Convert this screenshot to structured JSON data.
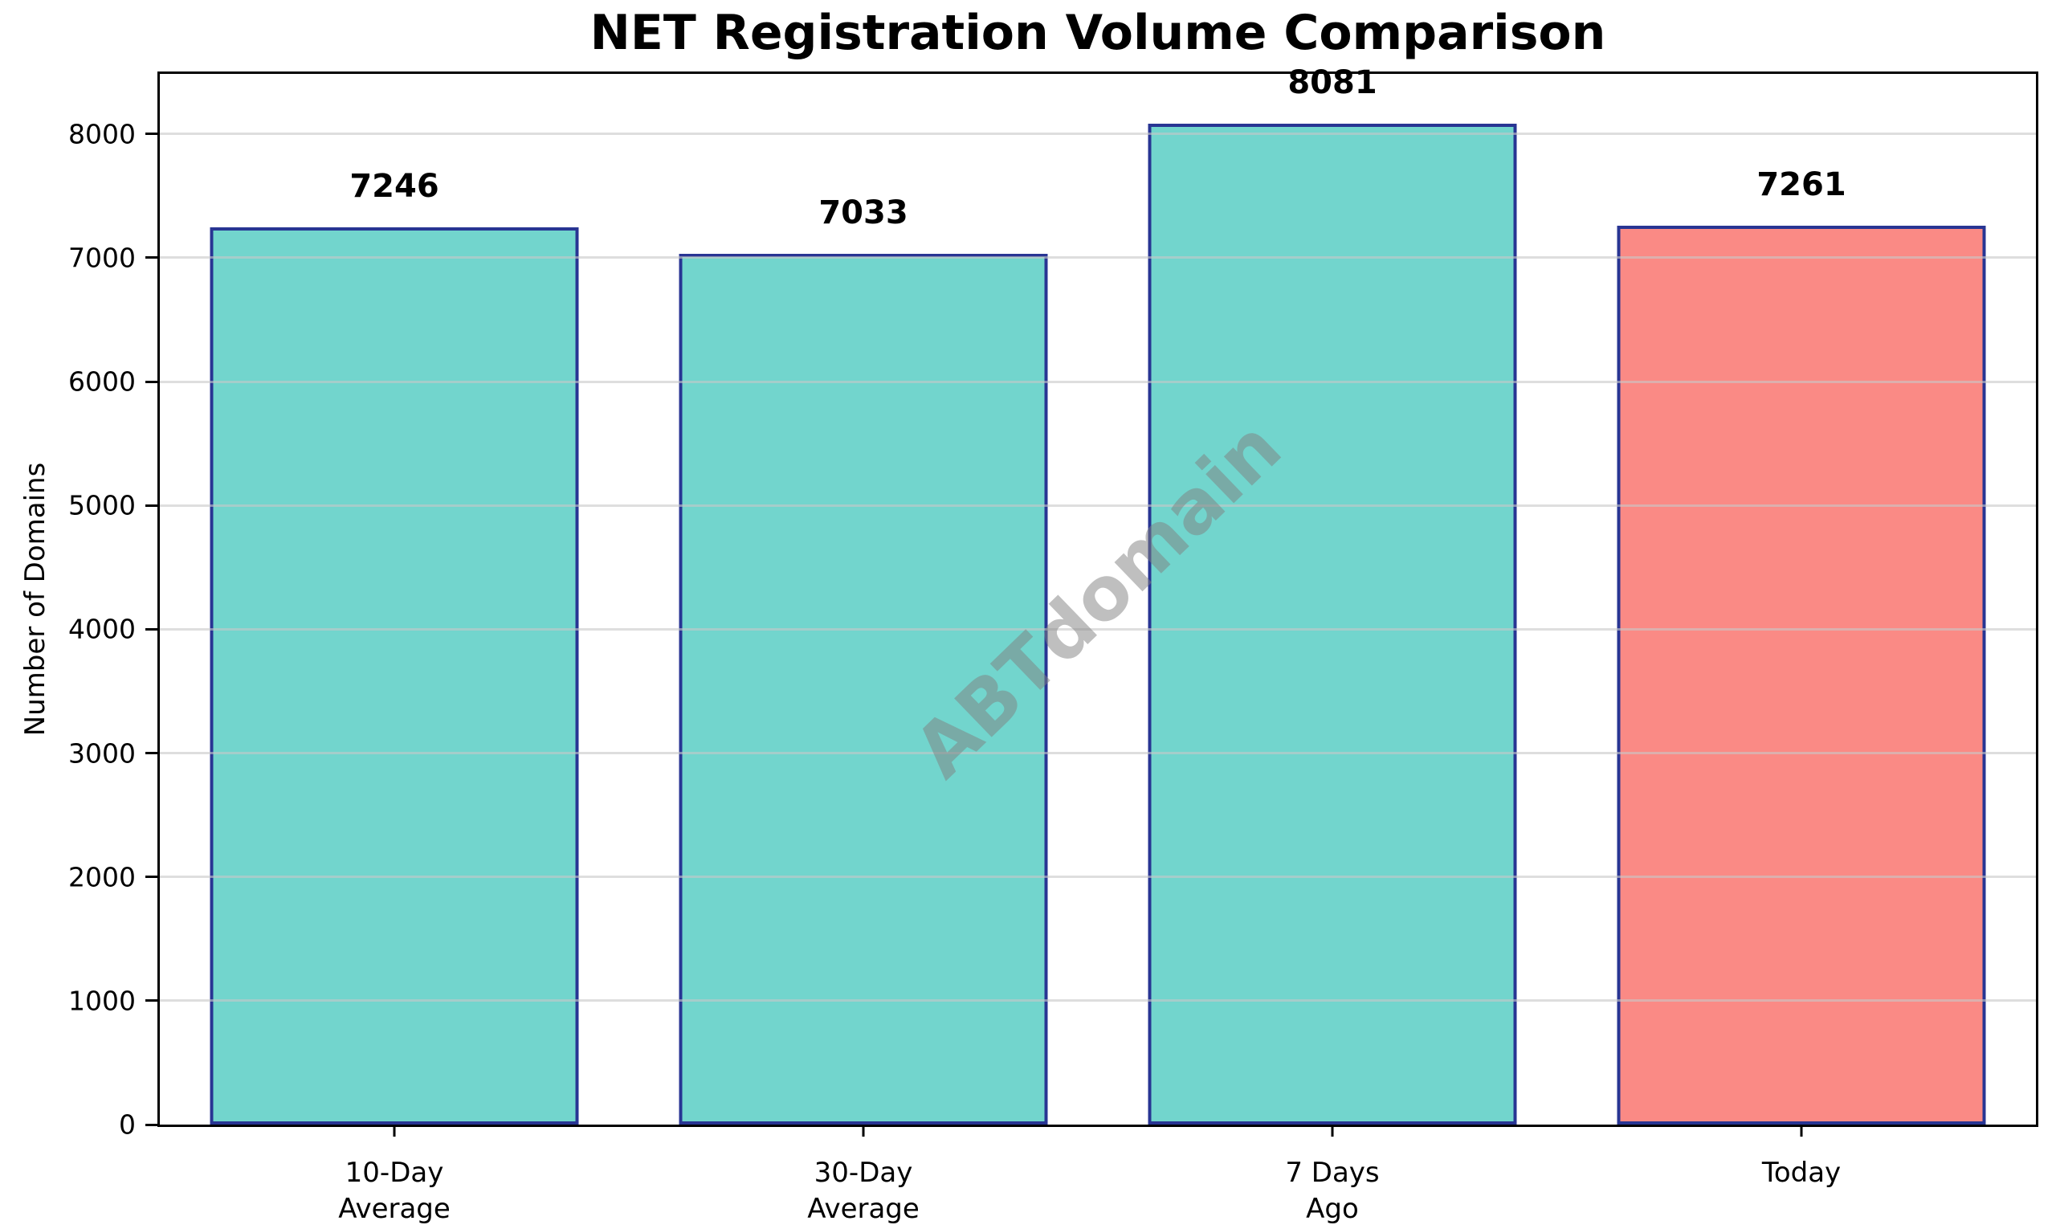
{
  "chart_data": {
    "type": "bar",
    "title": "NET Registration Volume Comparison",
    "xlabel": "",
    "ylabel": "Number of Domains",
    "categories": [
      [
        "10-Day",
        "Average"
      ],
      [
        "30-Day",
        "Average"
      ],
      [
        "7 Days",
        "Ago"
      ],
      [
        "Today"
      ]
    ],
    "values": [
      7246,
      7033,
      8081,
      7261
    ],
    "value_labels": [
      "7246",
      "7033",
      "8081",
      "7261"
    ],
    "bar_colors": [
      "#72d5cd",
      "#72d5cd",
      "#72d5cd",
      "#fa8a85"
    ],
    "bar_edge_color": "#283593",
    "ylim": [
      0,
      8485
    ],
    "yticks": [
      0,
      1000,
      2000,
      3000,
      4000,
      5000,
      6000,
      7000,
      8000
    ],
    "ytick_labels": [
      "0",
      "1000",
      "2000",
      "3000",
      "4000",
      "5000",
      "6000",
      "7000",
      "8000"
    ],
    "grid": "horizontal",
    "grid_color": "#c8c8c8",
    "legend": "none",
    "watermark": "ABTdomain",
    "frame_color": "#000000",
    "background_color": "#ffffff"
  }
}
